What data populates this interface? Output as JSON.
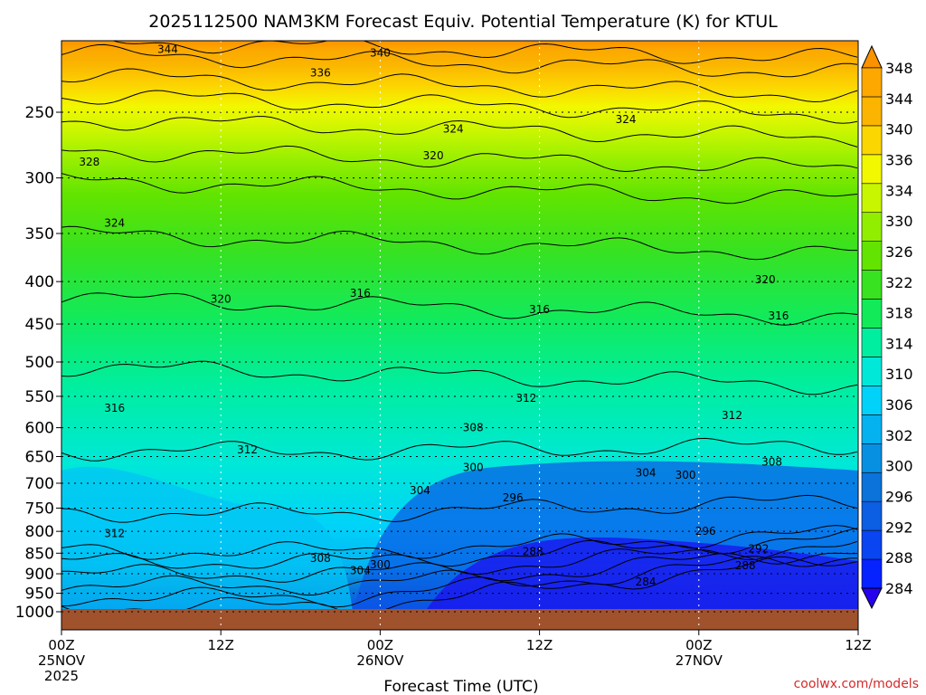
{
  "chart_data": {
    "type": "heatmap",
    "title": "2025112500 NAM3KM Forecast Equiv. Potential Temperature (K) for KTUL",
    "xlabel": "Forecast Time (UTC)",
    "ylabel": "",
    "watermark": "coolwx.com/models",
    "x_range_hours": [
      0,
      60
    ],
    "y_range_hpa": [
      1000,
      205
    ],
    "y_ticks": [
      250,
      300,
      350,
      400,
      450,
      500,
      550,
      600,
      650,
      700,
      750,
      800,
      850,
      900,
      950,
      1000
    ],
    "x_ticks": [
      {
        "hour": 0,
        "line1": "00Z",
        "line2": "25NOV",
        "line3": "2025"
      },
      {
        "hour": 12,
        "line1": "12Z",
        "line2": "",
        "line3": ""
      },
      {
        "hour": 24,
        "line1": "00Z",
        "line2": "26NOV",
        "line3": ""
      },
      {
        "hour": 36,
        "line1": "12Z",
        "line2": "",
        "line3": ""
      },
      {
        "hour": 48,
        "line1": "00Z",
        "line2": "27NOV",
        "line3": ""
      },
      {
        "hour": 60,
        "line1": "12Z",
        "line2": "",
        "line3": ""
      }
    ],
    "colorbar": {
      "levels": [
        284,
        288,
        292,
        296,
        300,
        302,
        306,
        310,
        314,
        318,
        322,
        326,
        330,
        334,
        336,
        340,
        344,
        348
      ],
      "colors": [
        "#2600ee",
        "#0522ff",
        "#0945f0",
        "#0c5ee2",
        "#0b73d9",
        "#0790e2",
        "#04b2f0",
        "#00d2fa",
        "#00e8d8",
        "#00eea0",
        "#13ea5a",
        "#38e220",
        "#62e400",
        "#92ee00",
        "#c8f600",
        "#f2f800",
        "#fcd600",
        "#fbb400",
        "#fca800",
        "#fb9200"
      ]
    },
    "contour_labels": [
      {
        "text": "344",
        "hour": 8.0,
        "hpa": 210
      },
      {
        "text": "340",
        "hour": 24.0,
        "hpa": 212
      },
      {
        "text": "336",
        "hour": 19.5,
        "hpa": 224
      },
      {
        "text": "328",
        "hour": 2.1,
        "hpa": 287
      },
      {
        "text": "324",
        "hour": 4.0,
        "hpa": 340
      },
      {
        "text": "324",
        "hour": 29.5,
        "hpa": 262
      },
      {
        "text": "324",
        "hour": 42.5,
        "hpa": 255
      },
      {
        "text": "320",
        "hour": 28.0,
        "hpa": 282
      },
      {
        "text": "320",
        "hour": 12.0,
        "hpa": 420
      },
      {
        "text": "320",
        "hour": 53.0,
        "hpa": 398
      },
      {
        "text": "316",
        "hour": 22.5,
        "hpa": 413
      },
      {
        "text": "316",
        "hour": 36.0,
        "hpa": 432
      },
      {
        "text": "316",
        "hour": 54.0,
        "hpa": 440
      },
      {
        "text": "316",
        "hour": 4.0,
        "hpa": 568
      },
      {
        "text": "312",
        "hour": 35.0,
        "hpa": 553
      },
      {
        "text": "312",
        "hour": 14.0,
        "hpa": 638
      },
      {
        "text": "312",
        "hour": 50.5,
        "hpa": 580
      },
      {
        "text": "312",
        "hour": 4.0,
        "hpa": 805
      },
      {
        "text": "308",
        "hour": 31.0,
        "hpa": 600
      },
      {
        "text": "308",
        "hour": 53.5,
        "hpa": 660
      },
      {
        "text": "308",
        "hour": 19.5,
        "hpa": 862
      },
      {
        "text": "304",
        "hour": 27.0,
        "hpa": 714
      },
      {
        "text": "304",
        "hour": 22.5,
        "hpa": 892
      },
      {
        "text": "304",
        "hour": 44.0,
        "hpa": 680
      },
      {
        "text": "300",
        "hour": 24.0,
        "hpa": 878
      },
      {
        "text": "300",
        "hour": 31.0,
        "hpa": 670
      },
      {
        "text": "300",
        "hour": 47.0,
        "hpa": 684
      },
      {
        "text": "296",
        "hour": 34.0,
        "hpa": 729
      },
      {
        "text": "296",
        "hour": 48.5,
        "hpa": 800
      },
      {
        "text": "292",
        "hour": 52.5,
        "hpa": 840
      },
      {
        "text": "288",
        "hour": 35.5,
        "hpa": 846
      },
      {
        "text": "288",
        "hour": 51.5,
        "hpa": 880
      },
      {
        "text": "284",
        "hour": 44.0,
        "hpa": 920
      }
    ]
  }
}
